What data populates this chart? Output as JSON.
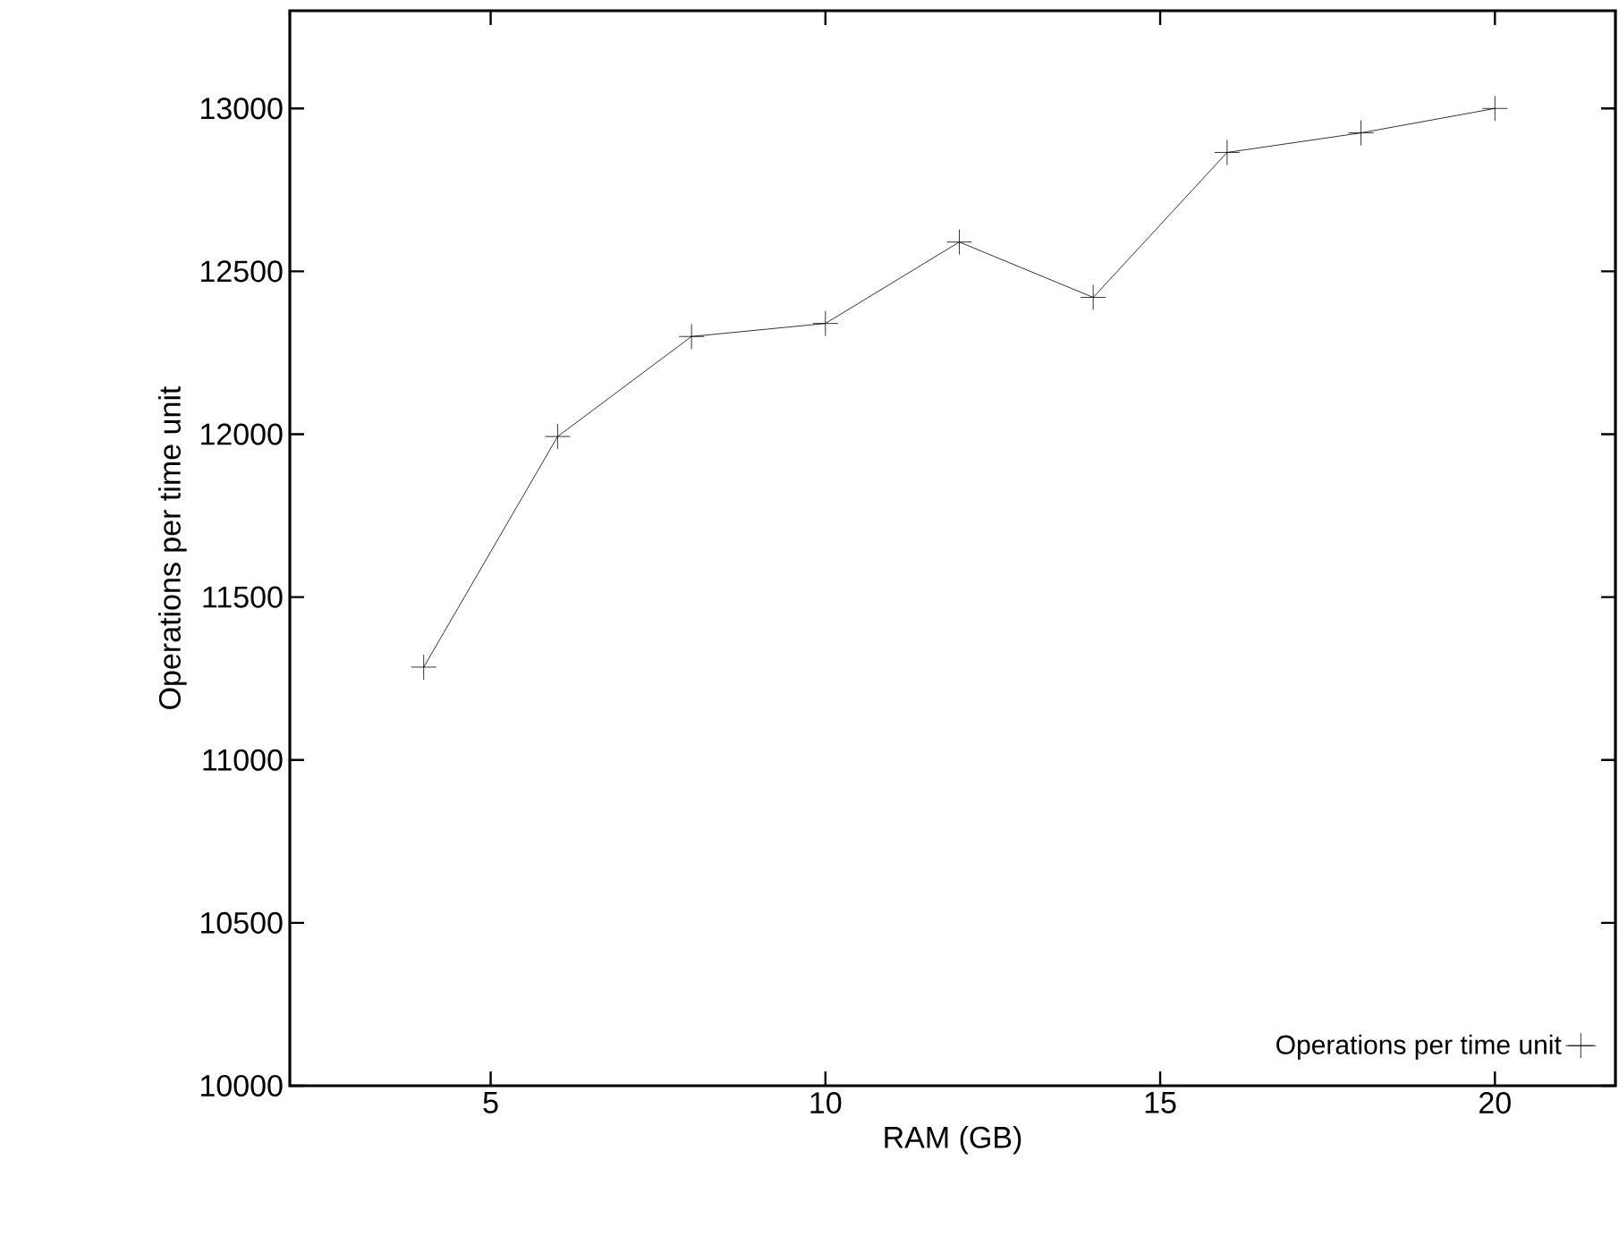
{
  "chart_data": {
    "type": "line",
    "xlabel": "RAM (GB)",
    "ylabel": "Operations per time unit",
    "x": [
      4,
      6,
      8,
      10,
      12,
      14,
      16,
      18,
      20
    ],
    "series": [
      {
        "name": "Operations per time unit",
        "color": "#000000",
        "values": [
          11285,
          11993,
          12300,
          12340,
          12590,
          12420,
          12865,
          12925,
          13000
        ]
      }
    ],
    "xlim": [
      2,
      21.8
    ],
    "ylim": [
      10000,
      13300
    ],
    "xticks": [
      5,
      10,
      15,
      20
    ],
    "yticks": [
      10000,
      10500,
      11000,
      11500,
      12000,
      12500,
      13000
    ],
    "marker": "cross",
    "line_style": "solid",
    "legend": "bottom right",
    "grid": false
  }
}
